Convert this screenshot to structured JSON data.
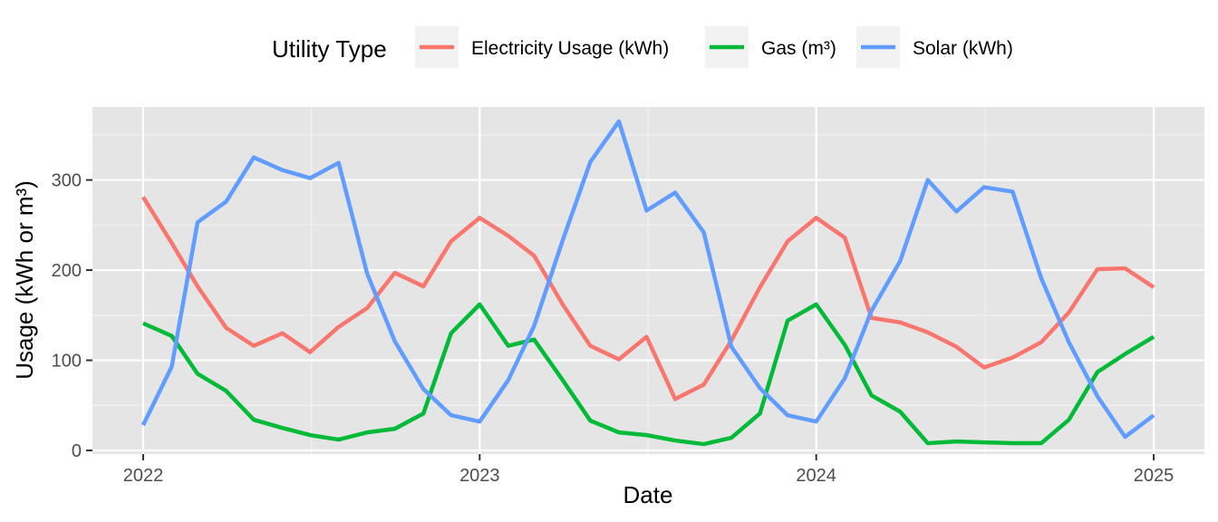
{
  "chart_data": {
    "type": "line",
    "xlabel": "Date",
    "ylabel": "Usage (kWh or m³)",
    "legend_title": "Utility Type",
    "legend_position": "top",
    "grid": true,
    "panel_background": "#e5e5e5",
    "xlim": [
      "2021-11-07",
      "2025-02-25"
    ],
    "ylim": [
      -4,
      381
    ],
    "x_ticks": [
      "2022-01-01",
      "2023-01-01",
      "2024-01-01",
      "2025-01-01"
    ],
    "x_tick_labels": [
      "2022",
      "2023",
      "2024",
      "2025"
    ],
    "y_ticks": [
      0,
      100,
      200,
      300
    ],
    "y_tick_labels": [
      "0",
      "100",
      "200",
      "300"
    ],
    "x": [
      "2022-01-01",
      "2022-02-01",
      "2022-03-01",
      "2022-04-01",
      "2022-05-01",
      "2022-06-01",
      "2022-07-01",
      "2022-08-01",
      "2022-09-01",
      "2022-10-01",
      "2022-11-01",
      "2022-12-01",
      "2023-01-01",
      "2023-02-01",
      "2023-03-01",
      "2023-04-01",
      "2023-05-01",
      "2023-06-01",
      "2023-07-01",
      "2023-08-01",
      "2023-09-01",
      "2023-10-01",
      "2023-11-01",
      "2023-12-01",
      "2024-01-01",
      "2024-02-01",
      "2024-03-01",
      "2024-04-01",
      "2024-05-01",
      "2024-06-01",
      "2024-07-01",
      "2024-08-01",
      "2024-09-01",
      "2024-10-01",
      "2024-11-01",
      "2024-12-01",
      "2025-01-01"
    ],
    "series": [
      {
        "name": "Electricity Usage (kWh)",
        "color": "#F8766D",
        "values": [
          281,
          230,
          182,
          136,
          116,
          130,
          109,
          137,
          158,
          197,
          182,
          232,
          258,
          238,
          216,
          162,
          116,
          101,
          126,
          57,
          73,
          122,
          181,
          232,
          258,
          236,
          147,
          142,
          131,
          115,
          92,
          103,
          120,
          153,
          201,
          202,
          181
        ]
      },
      {
        "name": "Gas (m³)",
        "color": "#00BA38",
        "values": [
          141,
          127,
          85,
          66,
          34,
          25,
          17,
          12,
          20,
          24,
          41,
          130,
          162,
          116,
          123,
          78,
          33,
          20,
          17,
          11,
          7,
          14,
          41,
          144,
          162,
          117,
          61,
          43,
          8,
          10,
          9,
          8,
          8,
          34,
          87,
          107,
          126
        ]
      },
      {
        "name": "Solar (kWh)",
        "color": "#619CFF",
        "values": [
          28,
          93,
          253,
          276,
          325,
          311,
          302,
          319,
          196,
          121,
          68,
          39,
          32,
          78,
          138,
          233,
          320,
          365,
          266,
          286,
          242,
          115,
          69,
          39,
          32,
          80,
          155,
          210,
          300,
          265,
          292,
          287,
          191,
          120,
          60,
          15,
          39
        ]
      }
    ]
  }
}
